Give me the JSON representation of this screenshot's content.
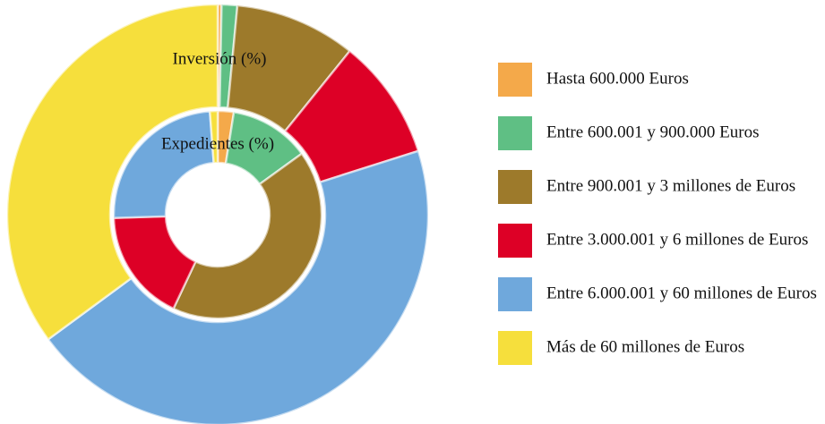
{
  "chart_data": {
    "type": "donut",
    "categories": [
      "Hasta 600.000 Euros",
      "Entre 600.001 y 900.000 Euros",
      "Entre 900.001 y 3 millones de Euros",
      "Entre 3.000.001 y 6 millones de Euros",
      "Entre 6.000.001 y 60 millones de Euros",
      "Más de 60 millones de Euros"
    ],
    "colors": [
      "#f4a94a",
      "#5fbf84",
      "#9d7a2b",
      "#dd0026",
      "#6fa8dc",
      "#f6df3c"
    ],
    "series": [
      {
        "name": "Inversión (%)",
        "values": [
          0.3,
          1.2,
          9.3,
          9.3,
          44.8,
          35.1
        ]
      },
      {
        "name": "Expedientes (%)",
        "values": [
          2.5,
          12.5,
          42,
          17.5,
          24.3,
          1.2
        ]
      }
    ],
    "legend": "right"
  }
}
